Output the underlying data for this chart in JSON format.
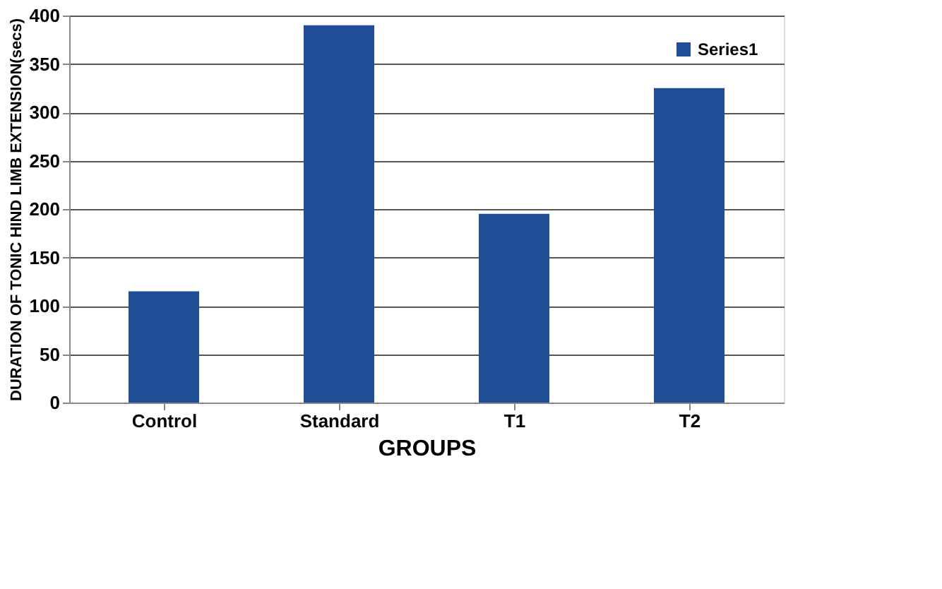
{
  "chart_data": {
    "type": "bar",
    "xlabel": "GROUPS",
    "ylabel": "DURATION OF TONIC HIND LIMB EXTENSION(secs)",
    "categories": [
      "Control",
      "Standard",
      "T1",
      "T2"
    ],
    "series": [
      {
        "name": "Series1",
        "color": "#1f4e96",
        "values": [
          115,
          390,
          195,
          325
        ]
      }
    ],
    "ylim": [
      0,
      400
    ],
    "yticks": [
      0,
      50,
      100,
      150,
      200,
      250,
      300,
      350,
      400
    ],
    "grid": "y",
    "legend": "top right"
  }
}
